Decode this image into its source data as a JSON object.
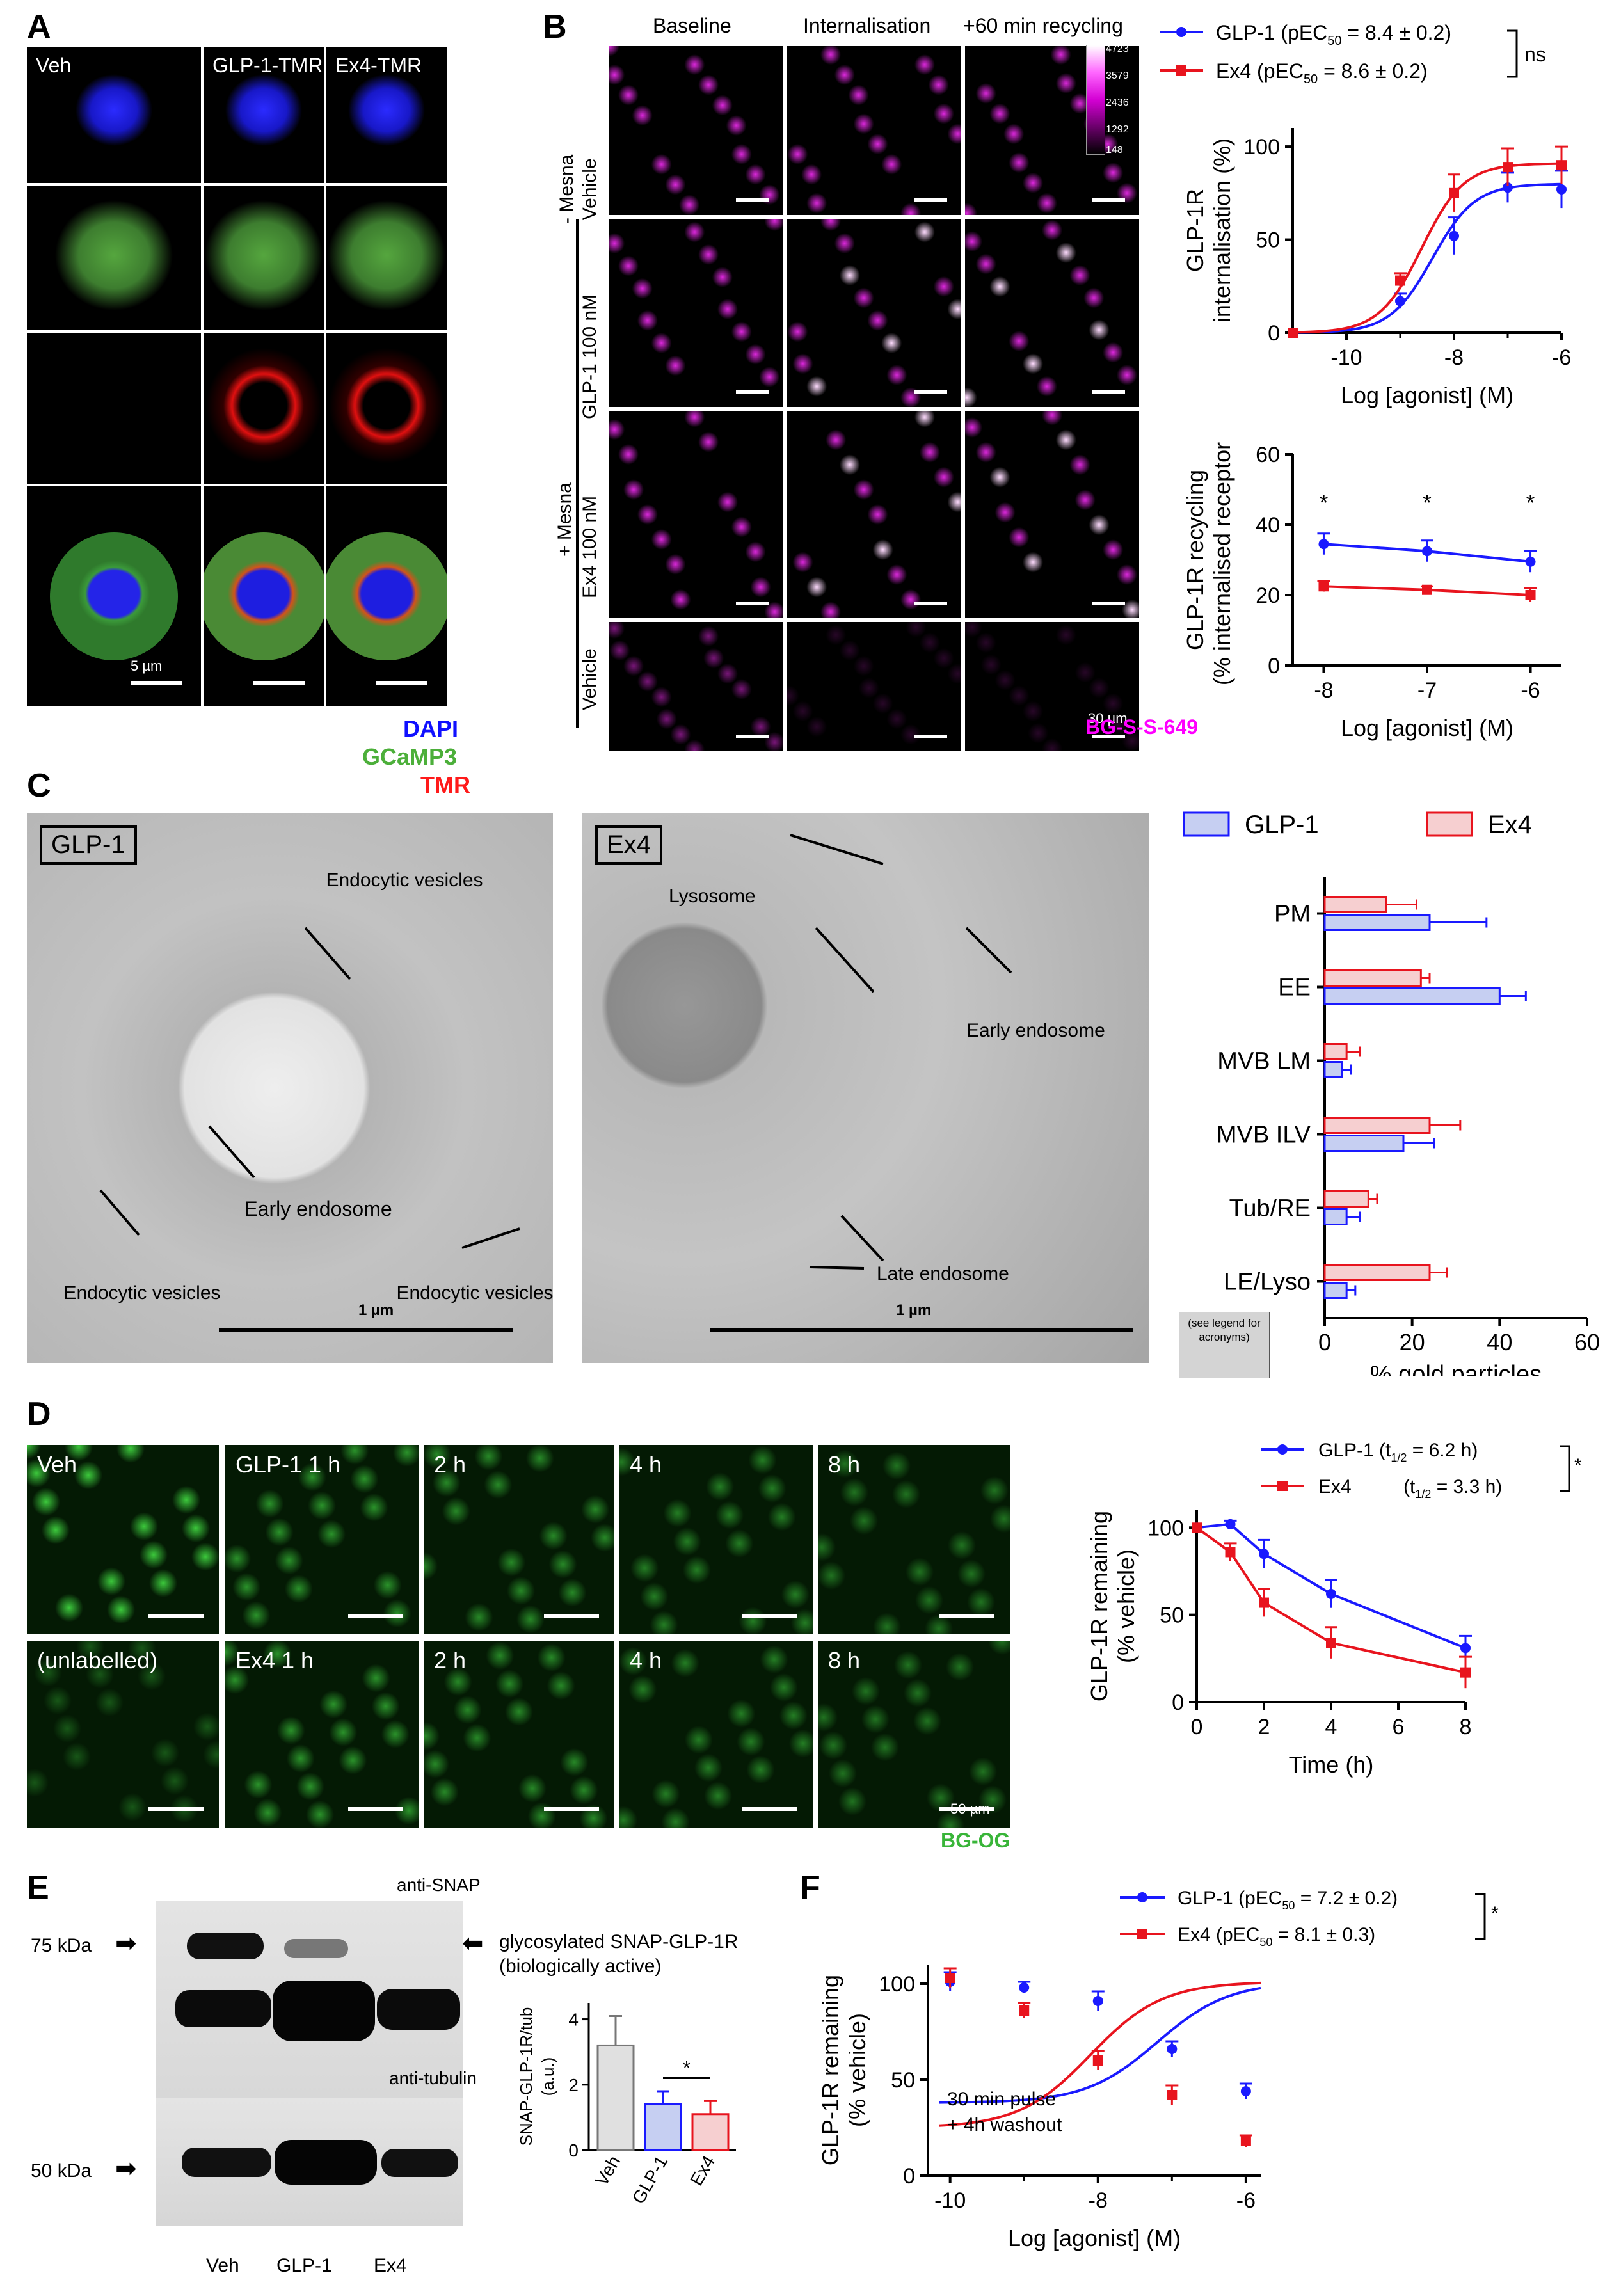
{
  "letters": {
    "a": "A",
    "b": "B",
    "c": "C",
    "d": "D",
    "e": "E",
    "f": "F"
  },
  "panelA": {
    "columns": [
      "Veh",
      "GLP-1-TMR",
      "Ex4-TMR"
    ],
    "scalebar": "5 µm",
    "legend": {
      "dapi": "DAPI",
      "gcamp": "GCaMP3",
      "tmr": "TMR"
    },
    "colors": {
      "dapi": "#1010ff",
      "gcamp": "#4caf3a",
      "tmr": "#ff1a1a"
    }
  },
  "panelB": {
    "columns": [
      "Baseline",
      "Internalisation",
      "+60 min recycling"
    ],
    "row_labels": {
      "minus_mesna": "- Mesna",
      "vehicle1": "Vehicle",
      "glp1": "GLP-1 100 nM",
      "ex4": "Ex4 100  nM",
      "vehicle2": "Vehicle",
      "plus_mesna": "+ Mesna"
    },
    "colorbar_ticks": [
      "4723",
      "3579",
      "2436",
      "1292",
      "148"
    ],
    "scalebar": "30 µm",
    "footer": "BG-S-S-649",
    "legend": {
      "glp1": "GLP-1 (pEC",
      "glp1_val": " = 8.4 ± 0.2)",
      "ex4": "Ex4 (pEC",
      "ex4_val": " = 8.6 ± 0.2)",
      "sub": "50",
      "ns": "ns"
    }
  },
  "chart_data": [
    {
      "type": "line",
      "panel": "B-top",
      "xlabel": "Log [agonist] (M)",
      "ylabel": "GLP-1R internalisation (%)",
      "xticks": [
        "-10",
        "-8",
        "-6"
      ],
      "yticks": [
        "0",
        "50",
        "100"
      ],
      "xlim": [
        -11,
        -6
      ],
      "ylim": [
        0,
        110
      ],
      "series": [
        {
          "name": "GLP-1",
          "color": "#1a1aff",
          "x": [
            -11,
            -9,
            -8,
            -7,
            -6
          ],
          "y": [
            0,
            17,
            52,
            78,
            77
          ],
          "err": [
            0,
            4,
            10,
            8,
            10
          ]
        },
        {
          "name": "Ex4",
          "color": "#e8141e",
          "x": [
            -11,
            -9,
            -8,
            -7,
            -6
          ],
          "y": [
            0,
            28,
            75,
            89,
            90
          ],
          "err": [
            0,
            4,
            10,
            10,
            10
          ]
        }
      ]
    },
    {
      "type": "line",
      "panel": "B-bottom",
      "xlabel": "Log [agonist] (M)",
      "ylabel": "GLP-1R recycling (% internalised receptor)",
      "xticks": [
        "-8",
        "-7",
        "-6"
      ],
      "yticks": [
        "0",
        "20",
        "40",
        "60"
      ],
      "xlim": [
        -8.3,
        -5.7
      ],
      "ylim": [
        0,
        60
      ],
      "annotations": [
        "*",
        "*",
        "*"
      ],
      "series": [
        {
          "name": "GLP-1",
          "color": "#1a1aff",
          "x": [
            -8,
            -7,
            -6
          ],
          "y": [
            34.5,
            32.5,
            29.5
          ],
          "err": [
            3,
            3,
            3
          ]
        },
        {
          "name": "Ex4",
          "color": "#e8141e",
          "x": [
            -8,
            -7,
            -6
          ],
          "y": [
            22.5,
            21.5,
            20
          ],
          "err": [
            1.5,
            1,
            2
          ]
        }
      ]
    },
    {
      "type": "bar",
      "panel": "C",
      "orientation": "horizontal",
      "categories": [
        "PM",
        "EE",
        "MVB LM",
        "MVB ILV",
        "Tub/RE",
        "LE/Lyso"
      ],
      "xlabel": "% gold particles",
      "xticks": [
        "0",
        "20",
        "40",
        "60"
      ],
      "xlim": [
        0,
        60
      ],
      "series": [
        {
          "name": "GLP-1",
          "color": "#1a1aff",
          "fill": "#c6cff2",
          "values": [
            24,
            40,
            4,
            18,
            5,
            5
          ],
          "err": [
            13,
            6,
            2,
            7,
            3,
            2
          ]
        },
        {
          "name": "Ex4",
          "color": "#e8141e",
          "fill": "#f6cfd0",
          "values": [
            14,
            22,
            5,
            24,
            10,
            24
          ],
          "err": [
            7,
            2,
            3,
            7,
            2,
            4
          ]
        }
      ],
      "note": "(see legend for acronyms)"
    },
    {
      "type": "line",
      "panel": "D",
      "xlabel": "Time (h)",
      "ylabel": "GLP-1R remaining (% vehicle)",
      "xticks": [
        "0",
        "2",
        "4",
        "6",
        "8"
      ],
      "yticks": [
        "0",
        "50",
        "100"
      ],
      "xlim": [
        0,
        8
      ],
      "ylim": [
        0,
        110
      ],
      "series": [
        {
          "name": "GLP-1",
          "color": "#1a1aff",
          "x": [
            0,
            1,
            2,
            4,
            8
          ],
          "y": [
            100,
            102,
            85,
            62,
            31
          ],
          "err": [
            0,
            2,
            8,
            8,
            7
          ]
        },
        {
          "name": "Ex4",
          "color": "#e8141e",
          "x": [
            0,
            1,
            2,
            4,
            8
          ],
          "y": [
            100,
            86,
            57,
            34,
            17
          ],
          "err": [
            0,
            5,
            8,
            9,
            9
          ]
        }
      ]
    },
    {
      "type": "bar",
      "panel": "E",
      "categories": [
        "Veh",
        "GLP-1",
        "Ex4"
      ],
      "ylabel": "SNAP-GLP-1R/tub (a.u.)",
      "yticks": [
        "0",
        "2",
        "4"
      ],
      "ylim": [
        0,
        4.5
      ],
      "values": [
        3.2,
        1.4,
        1.1
      ],
      "err": [
        0.9,
        0.4,
        0.4
      ],
      "colors": [
        "#777777",
        "#1a1aff",
        "#e8141e"
      ],
      "fills": [
        "#e0e0e0",
        "#c6cff2",
        "#f6cfd0"
      ],
      "annotations": [
        "*"
      ]
    },
    {
      "type": "line",
      "panel": "F",
      "xlabel": "Log [agonist] (M)",
      "ylabel": "GLP-1R remaining (% vehicle)",
      "xticks": [
        "-10",
        "-8",
        "-6"
      ],
      "yticks": [
        "0",
        "50",
        "100"
      ],
      "xlim": [
        -10.3,
        -5.8
      ],
      "ylim": [
        0,
        110
      ],
      "series": [
        {
          "name": "GLP-1",
          "color": "#1a1aff",
          "x": [
            -10,
            -9,
            -8,
            -7,
            -6
          ],
          "y": [
            101,
            98,
            91,
            66,
            44
          ],
          "err": [
            5,
            3,
            5,
            4,
            4
          ]
        },
        {
          "name": "Ex4",
          "color": "#e8141e",
          "x": [
            -10,
            -9,
            -8,
            -7,
            -6
          ],
          "y": [
            103,
            86,
            60,
            42,
            18
          ],
          "err": [
            5,
            4,
            5,
            5,
            3
          ]
        }
      ]
    }
  ],
  "panelC": {
    "glp1_label": "GLP-1",
    "ex4_label": "Ex4",
    "glp1_annot": {
      "endo_top": "Endocytic\nvesicles",
      "early": "Early\nendosome",
      "endo_left": "Endocytic\nvesicles",
      "endo_right": "Endocytic\nvesicles"
    },
    "ex4_annot": {
      "lyso": "Lysosome",
      "early": "Early\nendosome",
      "late": "Late\nendosome"
    },
    "scalebar": "1 µm",
    "legend_glp1": "GLP-1",
    "legend_ex4": "Ex4"
  },
  "panelD": {
    "top": [
      "Veh",
      "GLP-1 1 h",
      "2 h",
      "4 h",
      "8 h"
    ],
    "bottom": [
      "(unlabelled)",
      "Ex4 1 h",
      "2 h",
      "4 h",
      "8 h"
    ],
    "scalebar": "50 µm",
    "footer": "BG-OG",
    "legend": {
      "glp1": "GLP-1 (t",
      "glp1_val": " =  6.2 h)",
      "ex4": "Ex4",
      "ex4_pre": "(t",
      "ex4_val": " = 3.3 h)",
      "sub": "1/2",
      "star": "*"
    }
  },
  "panelE": {
    "kda75": "75 kDa",
    "kda50": "50 kDa",
    "anti_snap": "anti-SNAP",
    "anti_tub": "anti-tubulin",
    "glyco1": "glycosylated SNAP-GLP-1R",
    "glyco2": "(biologically active)",
    "lanes": [
      "Veh",
      "GLP-1",
      "Ex4"
    ]
  },
  "panelF": {
    "legend": {
      "glp1": "GLP-1 (pEC",
      "glp1_val": " = 7.2 ± 0.2)",
      "ex4": "Ex4 (pEC",
      "ex4_val": " = 8.1 ± 0.3)",
      "sub": "50",
      "star": "*"
    },
    "note1": "30 min pulse",
    "note2": "+ 4h washout"
  }
}
